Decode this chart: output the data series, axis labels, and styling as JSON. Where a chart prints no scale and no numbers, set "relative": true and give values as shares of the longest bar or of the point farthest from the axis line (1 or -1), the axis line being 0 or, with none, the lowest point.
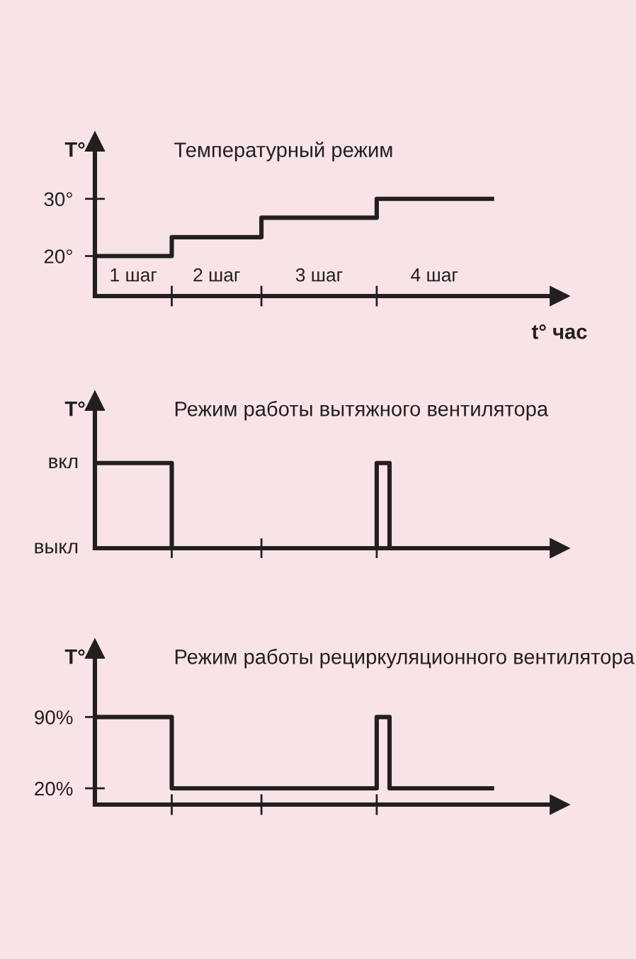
{
  "chart_data": [
    {
      "type": "step",
      "title": "Температурный режим",
      "ylabel": "T°",
      "xlabel": "t° час",
      "categories": [
        null,
        null,
        null,
        null,
        null,
        null,
        null,
        null,
        null,
        null,
        null,
        null,
        null,
        null,
        null,
        null,
        null,
        null,
        null,
        null,
        null,
        null,
        null,
        null,
        null,
        null,
        null,
        null,
        null,
        null,
        null,
        null
      ],
      "ylim": [
        13,
        40
      ],
      "yticks": [
        {
          "value": 20,
          "label": "20°"
        },
        {
          "value": 30,
          "label": "30°"
        }
      ],
      "series": [
        {
          "color": "#231f20",
          "values": [
            20,
            20,
            20,
            20,
            20,
            20,
            23.3,
            23.3,
            23.3,
            23.3,
            23.3,
            23.3,
            23.3,
            26.7,
            26.7,
            26.7,
            26.7,
            26.7,
            26.7,
            26.7,
            26.7,
            26.7,
            30,
            30,
            30,
            30,
            30,
            30,
            30,
            30,
            30,
            30
          ]
        }
      ],
      "annotations": [
        "1 шаг",
        "2 шаг",
        "3 шаг",
        "4 шаг"
      ]
    },
    {
      "type": "step",
      "title": "Режим работы вытяжного вентилятора",
      "ylabel": "T°",
      "categories": [
        null,
        null,
        null,
        null,
        null,
        null,
        null,
        null,
        null,
        null,
        null,
        null,
        null,
        null,
        null,
        null,
        null,
        null,
        null,
        null,
        null,
        null,
        null,
        null,
        null,
        null,
        null,
        null,
        null,
        null,
        null,
        null
      ],
      "relative": true,
      "annotations": [
        "вкл",
        "выкл"
      ],
      "series": [
        {
          "color": "#231f20",
          "values": [
            1,
            1,
            1,
            1,
            1,
            1,
            0,
            0,
            0,
            0,
            0,
            0,
            0,
            0,
            0,
            0,
            0,
            0,
            0,
            0,
            0,
            0,
            1,
            0,
            0,
            0,
            0,
            0,
            0,
            0,
            0,
            0
          ]
        }
      ]
    },
    {
      "type": "step",
      "title": "Режим работы рециркуляционного вентилятора",
      "ylabel": "T°",
      "categories": [
        null,
        null,
        null,
        null,
        null,
        null,
        null,
        null,
        null,
        null,
        null,
        null,
        null,
        null,
        null,
        null,
        null,
        null,
        null,
        null,
        null,
        null,
        null,
        null,
        null,
        null,
        null,
        null,
        null,
        null,
        null,
        null
      ],
      "ylim": [
        4,
        157
      ],
      "yticks": [
        {
          "value": 20,
          "label": "20%"
        },
        {
          "value": 90,
          "label": "90%"
        }
      ],
      "series": [
        {
          "color": "#231f20",
          "values": [
            90,
            90,
            90,
            90,
            90,
            90,
            20,
            20,
            20,
            20,
            20,
            20,
            20,
            20,
            20,
            20,
            20,
            20,
            20,
            20,
            20,
            20,
            90,
            20,
            20,
            20,
            20,
            20,
            20,
            20,
            20,
            20
          ]
        }
      ]
    }
  ]
}
